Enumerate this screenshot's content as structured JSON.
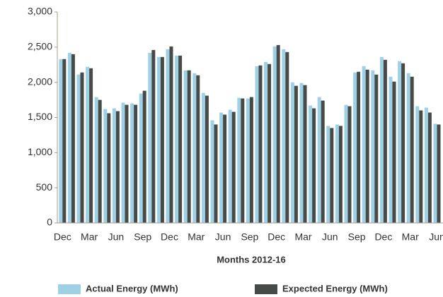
{
  "chart_data": {
    "type": "bar",
    "x_label": "Months 2012-16",
    "categories": [
      "Dec",
      null,
      null,
      "Mar",
      null,
      null,
      "Jun",
      null,
      null,
      "Sep",
      null,
      null,
      "Dec",
      null,
      null,
      "Mar",
      null,
      null,
      "Jun",
      null,
      null,
      "Sep",
      null,
      null,
      "Dec",
      null,
      null,
      "Mar",
      null,
      null,
      "Jun",
      null,
      null,
      "Sep",
      null,
      null,
      "Dec",
      null,
      null,
      "Mar",
      null,
      null,
      "Jun"
    ],
    "series": [
      {
        "name": "Actual Energy (MWh)",
        "color": "#9fd1e6",
        "values": [
          2330,
          2420,
          2110,
          2220,
          1790,
          1620,
          1630,
          1710,
          1700,
          1840,
          2420,
          2360,
          2470,
          2380,
          2170,
          2130,
          1850,
          1460,
          1570,
          1610,
          1780,
          1770,
          2230,
          2290,
          2510,
          2470,
          2000,
          1990,
          1670,
          1790,
          1380,
          1400,
          1680,
          2140,
          2230,
          2170,
          2360,
          2080,
          2300,
          2130,
          1660,
          1640,
          1410
        ]
      },
      {
        "name": "Expected Energy (MWh)",
        "color": "#474b47",
        "values": [
          2330,
          2400,
          2140,
          2200,
          1750,
          1560,
          1590,
          1680,
          1680,
          1880,
          2460,
          2360,
          2510,
          2380,
          2170,
          2100,
          1810,
          1400,
          1540,
          1580,
          1770,
          1790,
          2240,
          2260,
          2530,
          2430,
          1950,
          1960,
          1630,
          1740,
          1350,
          1380,
          1660,
          2150,
          2180,
          2110,
          2320,
          2010,
          2270,
          2080,
          1600,
          1570,
          1400
        ]
      }
    ],
    "ylim": [
      0,
      3000
    ],
    "yticks": [
      0,
      500,
      {
        "value": 1000,
        "label": "1,000"
      },
      {
        "value": 1500,
        "label": "1,500"
      },
      {
        "value": 2000,
        "label": "2,000"
      },
      {
        "value": 2500,
        "label": "2,500"
      },
      {
        "value": 3000,
        "label": "3,000"
      }
    ]
  }
}
